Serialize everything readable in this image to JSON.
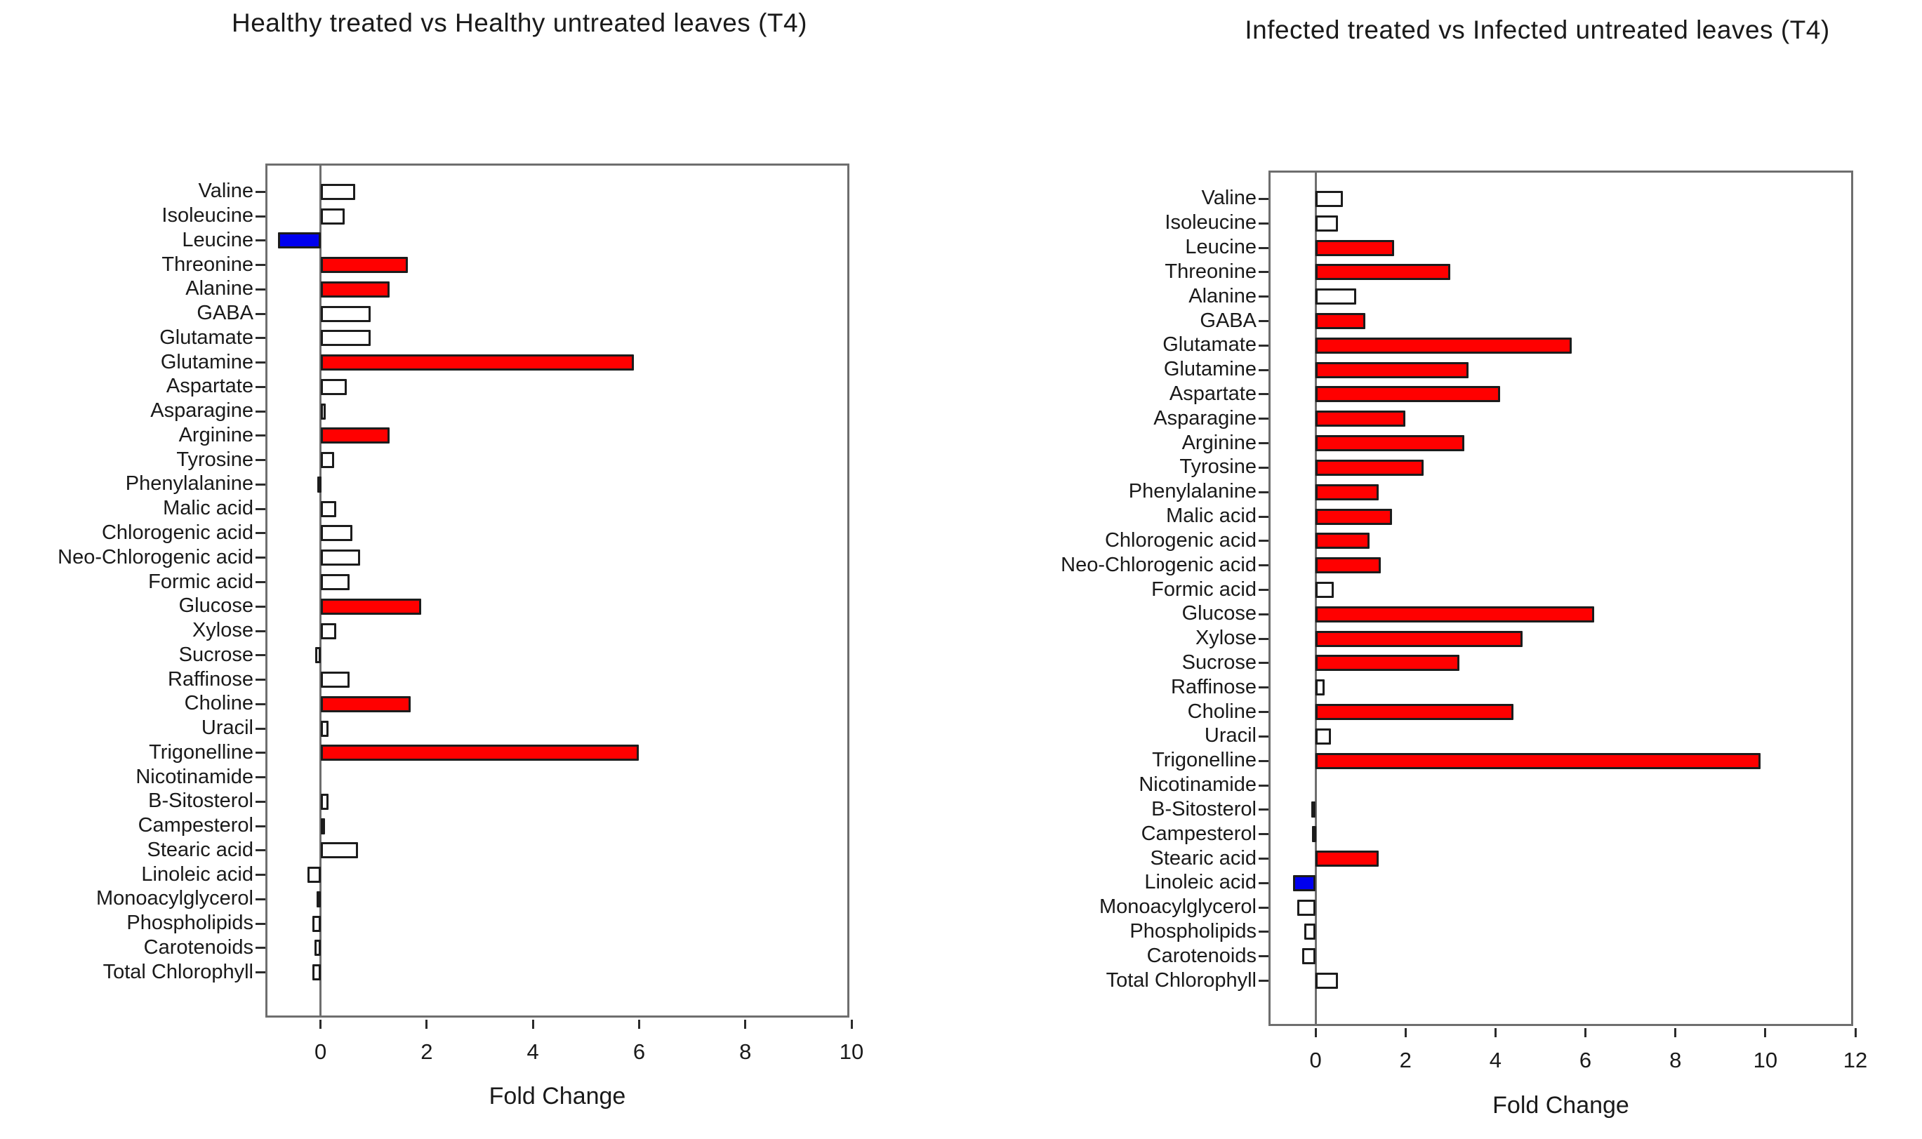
{
  "figure": {
    "background": "#ffffff"
  },
  "colors": {
    "significant_up": "#ff0000",
    "significant_down": "#0000ee",
    "not_significant_fill": "#ffffff",
    "bar_outline": "#1c1c1c",
    "axis_line": "#6e6e6e",
    "tick_mark": "#2b2b2b",
    "text": "#1a1a1a"
  },
  "chart_data": [
    {
      "type": "bar",
      "orientation": "horizontal",
      "title": "Healthy treated vs Healthy untreated leaves (T4)",
      "xlabel": "Fold Change",
      "xlim": [
        -1,
        10
      ],
      "xticks": [
        0,
        2,
        4,
        6,
        8,
        10
      ],
      "grid": false,
      "legend": null,
      "categories": [
        "Valine",
        "Isoleucine",
        "Leucine",
        "Threonine",
        "Alanine",
        "GABA",
        "Glutamate",
        "Glutamine",
        "Aspartate",
        "Asparagine",
        "Arginine",
        "Tyrosine",
        "Phenylalanine",
        "Malic acid",
        "Chlorogenic acid",
        "Neo-Chlorogenic acid",
        "Formic acid",
        "Glucose",
        "Xylose",
        "Sucrose",
        "Raffinose",
        "Choline",
        "Uracil",
        "Trigonelline",
        "Nicotinamide",
        "B-Sitosterol",
        "Campesterol",
        "Stearic acid",
        "Linoleic acid",
        "Monoacylglycerol",
        "Phospholipids",
        "Carotenoids",
        "Total Chlorophyll"
      ],
      "values": [
        0.65,
        0.45,
        -0.8,
        1.65,
        1.3,
        0.95,
        0.95,
        5.9,
        0.5,
        0.1,
        1.3,
        0.25,
        -0.05,
        0.3,
        0.6,
        0.75,
        0.55,
        1.9,
        0.3,
        -0.1,
        0.55,
        1.7,
        0.15,
        6.0,
        0,
        0.15,
        0.05,
        0.7,
        -0.25,
        -0.07,
        -0.15,
        -0.12,
        -0.15
      ],
      "bar_colors": [
        "white",
        "white",
        "blue",
        "red",
        "red",
        "white",
        "white",
        "red",
        "white",
        "white",
        "red",
        "white",
        "white",
        "white",
        "white",
        "white",
        "white",
        "red",
        "white",
        "white",
        "white",
        "red",
        "white",
        "red",
        "white",
        "white",
        "white",
        "white",
        "white",
        "white",
        "white",
        "white",
        "white"
      ]
    },
    {
      "type": "bar",
      "orientation": "horizontal",
      "title": "Infected treated vs Infected untreated leaves (T4)",
      "xlabel": "Fold Change",
      "xlim": [
        -1,
        12
      ],
      "xticks": [
        0,
        2,
        4,
        6,
        8,
        10,
        12
      ],
      "grid": false,
      "legend": null,
      "categories": [
        "Valine",
        "Isoleucine",
        "Leucine",
        "Threonine",
        "Alanine",
        "GABA",
        "Glutamate",
        "Glutamine",
        "Aspartate",
        "Asparagine",
        "Arginine",
        "Tyrosine",
        "Phenylalanine",
        "Malic acid",
        "Chlorogenic acid",
        "Neo-Chlorogenic acid",
        "Formic acid",
        "Glucose",
        "Xylose",
        "Sucrose",
        "Raffinose",
        "Choline",
        "Uracil",
        "Trigonelline",
        "Nicotinamide",
        "B-Sitosterol",
        "Campesterol",
        "Stearic acid",
        "Linoleic acid",
        "Monoacylglycerol",
        "Phospholipids",
        "Carotenoids",
        "Total Chlorophyll"
      ],
      "values": [
        0.6,
        0.5,
        1.75,
        3.0,
        0.9,
        1.1,
        5.7,
        3.4,
        4.1,
        2.0,
        3.3,
        2.4,
        1.4,
        1.7,
        1.2,
        1.45,
        0.4,
        6.2,
        4.6,
        3.2,
        0.2,
        4.4,
        0.35,
        9.9,
        0,
        -0.1,
        -0.05,
        1.4,
        -0.5,
        -0.4,
        -0.25,
        -0.3,
        0.5
      ],
      "bar_colors": [
        "white",
        "white",
        "red",
        "red",
        "white",
        "red",
        "red",
        "red",
        "red",
        "red",
        "red",
        "red",
        "red",
        "red",
        "red",
        "red",
        "white",
        "red",
        "red",
        "red",
        "white",
        "red",
        "white",
        "red",
        "white",
        "white",
        "white",
        "red",
        "blue",
        "white",
        "white",
        "white",
        "white"
      ]
    }
  ]
}
